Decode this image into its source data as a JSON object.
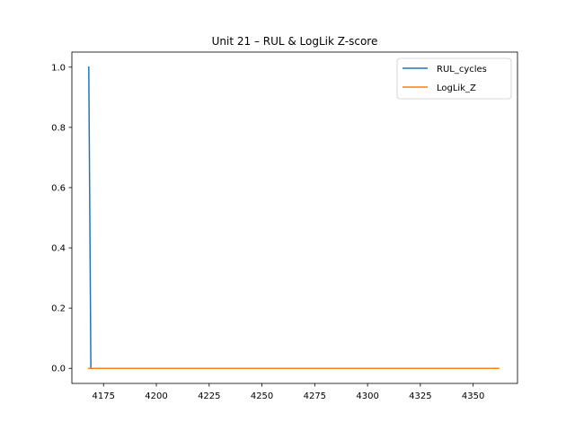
{
  "chart_data": {
    "type": "line",
    "title": "Unit 21  –  RUL & LogLik Z-score",
    "xlabel": "",
    "ylabel": "",
    "xlim": [
      4160,
      4371
    ],
    "ylim": [
      -0.05,
      1.05
    ],
    "x_ticks": [
      4175,
      4200,
      4225,
      4250,
      4275,
      4300,
      4325,
      4350
    ],
    "y_ticks": [
      0.0,
      0.2,
      0.4,
      0.6,
      0.8,
      1.0
    ],
    "x_tick_labels": [
      "4175",
      "4200",
      "4225",
      "4250",
      "4275",
      "4300",
      "4325",
      "4350"
    ],
    "y_tick_labels": [
      "0.0",
      "0.2",
      "0.4",
      "0.6",
      "0.8",
      "1.0"
    ],
    "grid": false,
    "legend_position": "top-right",
    "series": [
      {
        "name": "RUL_cycles",
        "color": "#1f77b4",
        "x": [
          4168,
          4169,
          4362
        ],
        "y": [
          1.0,
          0.0,
          0.0
        ]
      },
      {
        "name": "LogLik_Z",
        "color": "#ff7f0e",
        "x": [
          4168,
          4362
        ],
        "y": [
          0.0,
          0.0
        ]
      }
    ]
  }
}
